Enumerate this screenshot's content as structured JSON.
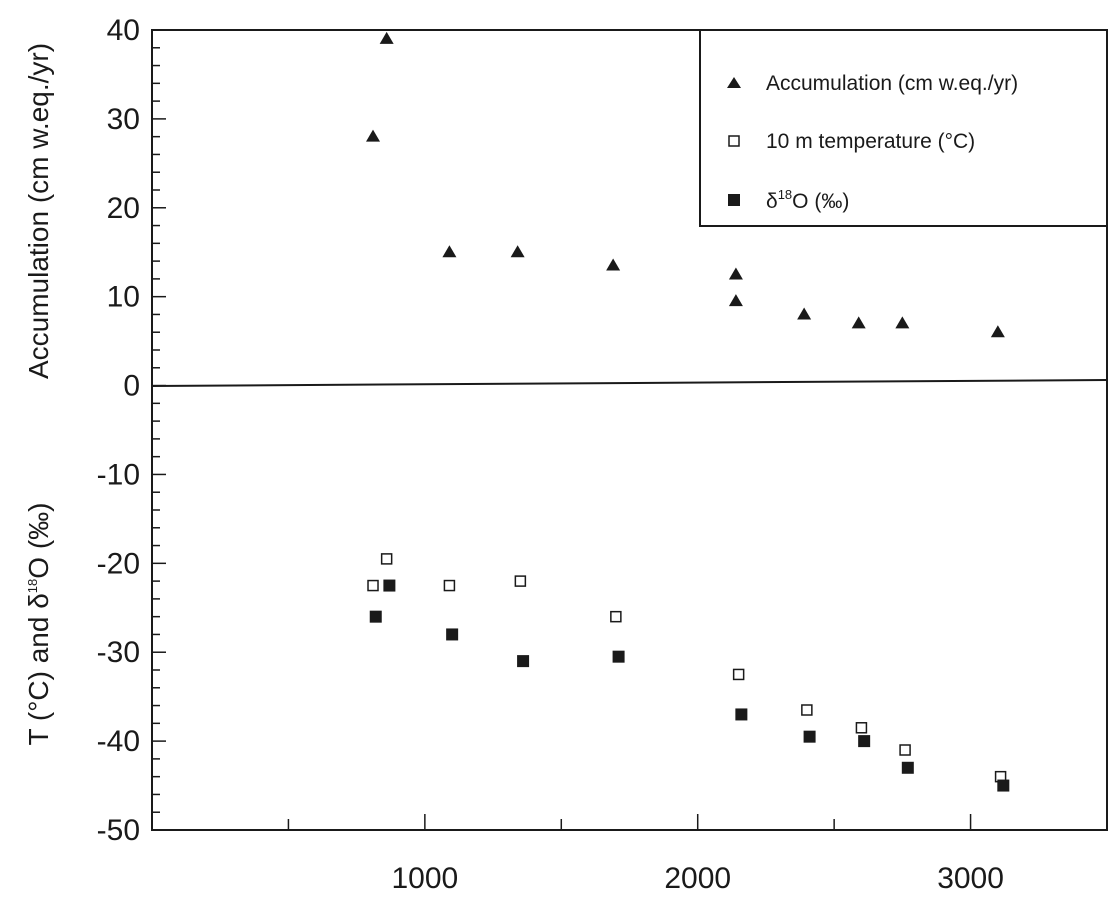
{
  "chart_data": {
    "type": "scatter",
    "xlabel": "",
    "xlim": [
      0,
      3500
    ],
    "ylim": [
      -50,
      40
    ],
    "grid": false,
    "legend_position": "top-right",
    "x_ticks": [
      "1000",
      "2000",
      "3000"
    ],
    "y_ticks": [
      "40",
      "30",
      "20",
      "10",
      "0",
      "-10",
      "-20",
      "-30",
      "-40",
      "-50"
    ],
    "y_label_upper": "Accumulation (cm w.eq./yr)",
    "y_label_lower": {
      "prefix": "T (°C) and δ",
      "sup": "18",
      "suffix": "O (‰)"
    },
    "series": [
      {
        "name": "Accumulation (cm w.eq./yr)",
        "marker": "filled-triangle",
        "x": [
          810,
          860,
          1090,
          1340,
          1690,
          2140,
          2140,
          2390,
          2590,
          2750,
          3100
        ],
        "y": [
          28,
          39,
          15,
          15,
          13.5,
          12.5,
          9.5,
          8,
          7,
          7,
          6
        ]
      },
      {
        "name": "10 m temperature (°C)",
        "marker": "open-square",
        "x": [
          810,
          860,
          1090,
          1350,
          1700,
          2150,
          2400,
          2600,
          2760,
          3110
        ],
        "y": [
          -22.5,
          -19.5,
          -22.5,
          -22,
          -26,
          -32.5,
          -36.5,
          -38.5,
          -41,
          -44
        ]
      },
      {
        "name": "δ18O (‰)",
        "legend": {
          "prefix": "δ",
          "sup": "18",
          "suffix": "O (‰)"
        },
        "marker": "filled-square",
        "x": [
          820,
          870,
          1100,
          1360,
          1710,
          2160,
          2410,
          2610,
          2770,
          3120
        ],
        "y": [
          -26,
          -22.5,
          -28,
          -31,
          -30.5,
          -37,
          -39.5,
          -40,
          -43,
          -45
        ]
      }
    ]
  }
}
